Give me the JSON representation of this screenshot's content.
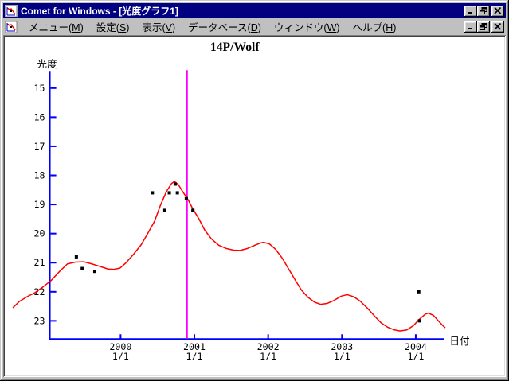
{
  "window": {
    "title": "Comet for Windows - [光度グラフ1]",
    "titlebar_buttons": [
      "minimize",
      "restore",
      "close"
    ]
  },
  "menubar": {
    "items": [
      "メニュー(M)",
      "設定(S)",
      "表示(V)",
      "データベース(D)",
      "ウィンドウ(W)",
      "ヘルプ(H)"
    ],
    "child_window_buttons": [
      "minimize",
      "restore",
      "close"
    ]
  },
  "chart_data": {
    "type": "line",
    "title": "14P/Wolf",
    "ylabel": "光度",
    "xlabel": "日付",
    "y_ticks": [
      15,
      16,
      17,
      18,
      19,
      20,
      21,
      22,
      23
    ],
    "y_axis_inverted": true,
    "ylim": [
      14.4,
      23.6
    ],
    "xlim": [
      1998.5,
      2004.55
    ],
    "x_ticks": [
      {
        "year": 2000,
        "label_lines": [
          "2000",
          "1/1"
        ]
      },
      {
        "year": 2001,
        "label_lines": [
          "2001",
          "1/1"
        ]
      },
      {
        "year": 2002,
        "label_lines": [
          "2002",
          "1/1"
        ]
      },
      {
        "year": 2003,
        "label_lines": [
          "2003",
          "1/1"
        ]
      },
      {
        "year": 2004,
        "label_lines": [
          "2004",
          "1/1"
        ]
      }
    ],
    "vertical_marker": {
      "x": 2000.9,
      "color": "#ff00ff"
    },
    "colors": {
      "axis": "#0000ff",
      "curve": "#ff0000",
      "points": "#000000",
      "text": "#000000"
    },
    "series": [
      {
        "name": "predicted-light-curve",
        "type": "line",
        "color": "#ff0000",
        "points": [
          [
            1998.54,
            22.55
          ],
          [
            1998.63,
            22.33
          ],
          [
            1998.74,
            22.16
          ],
          [
            1998.84,
            22.03
          ],
          [
            1998.95,
            21.83
          ],
          [
            1999.06,
            21.61
          ],
          [
            1999.17,
            21.31
          ],
          [
            1999.28,
            21.04
          ],
          [
            1999.39,
            20.98
          ],
          [
            1999.5,
            20.97
          ],
          [
            1999.61,
            21.04
          ],
          [
            1999.72,
            21.13
          ],
          [
            1999.83,
            21.22
          ],
          [
            1999.91,
            21.23
          ],
          [
            1999.99,
            21.19
          ],
          [
            2000.07,
            21.01
          ],
          [
            2000.17,
            20.73
          ],
          [
            2000.28,
            20.38
          ],
          [
            2000.37,
            19.99
          ],
          [
            2000.46,
            19.58
          ],
          [
            2000.54,
            19.03
          ],
          [
            2000.62,
            18.56
          ],
          [
            2000.69,
            18.28
          ],
          [
            2000.73,
            18.21
          ],
          [
            2000.78,
            18.31
          ],
          [
            2000.85,
            18.59
          ],
          [
            2000.92,
            18.86
          ],
          [
            2000.98,
            19.16
          ],
          [
            2001.06,
            19.49
          ],
          [
            2001.14,
            19.88
          ],
          [
            2001.23,
            20.18
          ],
          [
            2001.33,
            20.4
          ],
          [
            2001.43,
            20.51
          ],
          [
            2001.53,
            20.57
          ],
          [
            2001.62,
            20.58
          ],
          [
            2001.72,
            20.51
          ],
          [
            2001.82,
            20.4
          ],
          [
            2001.9,
            20.32
          ],
          [
            2001.94,
            20.3
          ],
          [
            2002.02,
            20.36
          ],
          [
            2002.1,
            20.54
          ],
          [
            2002.19,
            20.84
          ],
          [
            2002.28,
            21.23
          ],
          [
            2002.37,
            21.61
          ],
          [
            2002.45,
            21.94
          ],
          [
            2002.54,
            22.19
          ],
          [
            2002.63,
            22.36
          ],
          [
            2002.71,
            22.43
          ],
          [
            2002.8,
            22.4
          ],
          [
            2002.89,
            22.3
          ],
          [
            2002.99,
            22.15
          ],
          [
            2003.07,
            22.1
          ],
          [
            2003.16,
            22.17
          ],
          [
            2003.25,
            22.33
          ],
          [
            2003.34,
            22.55
          ],
          [
            2003.44,
            22.83
          ],
          [
            2003.53,
            23.07
          ],
          [
            2003.62,
            23.22
          ],
          [
            2003.71,
            23.31
          ],
          [
            2003.79,
            23.35
          ],
          [
            2003.88,
            23.31
          ],
          [
            2003.97,
            23.16
          ],
          [
            2004.05,
            22.94
          ],
          [
            2004.13,
            22.77
          ],
          [
            2004.17,
            22.73
          ],
          [
            2004.24,
            22.81
          ],
          [
            2004.3,
            22.98
          ],
          [
            2004.37,
            23.17
          ],
          [
            2004.4,
            23.24
          ]
        ]
      },
      {
        "name": "observations",
        "type": "scatter",
        "color": "#000000",
        "points": [
          [
            1999.4,
            20.8
          ],
          [
            1999.48,
            21.2
          ],
          [
            1999.65,
            21.3
          ],
          [
            2000.43,
            18.6
          ],
          [
            2000.6,
            19.2
          ],
          [
            2000.66,
            18.6
          ],
          [
            2000.74,
            18.3
          ],
          [
            2000.77,
            18.6
          ],
          [
            2000.89,
            18.8
          ],
          [
            2000.98,
            19.2
          ],
          [
            2004.04,
            22.0
          ],
          [
            2004.05,
            23.0
          ]
        ]
      }
    ]
  }
}
